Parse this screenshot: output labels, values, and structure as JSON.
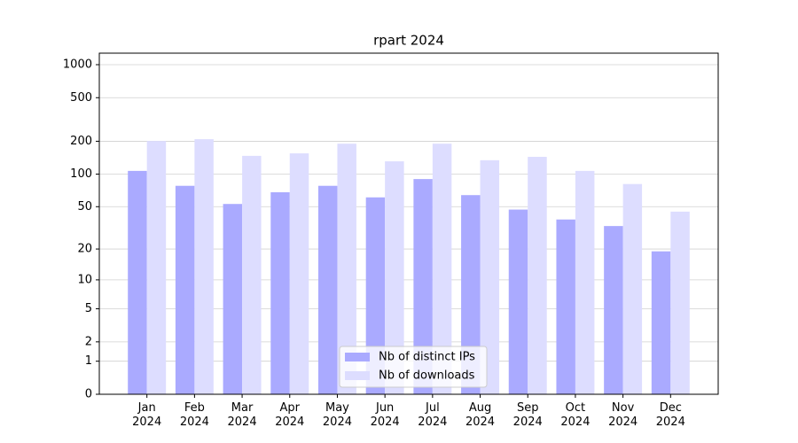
{
  "chart_data": {
    "type": "bar",
    "title": "rpart 2024",
    "categories": [
      "Jan\n2024",
      "Feb\n2024",
      "Mar\n2024",
      "Apr\n2024",
      "May\n2024",
      "Jun\n2024",
      "Jul\n2024",
      "Aug\n2024",
      "Sep\n2024",
      "Oct\n2024",
      "Nov\n2024",
      "Dec\n2024"
    ],
    "series": [
      {
        "name": "Nb of distinct IPs",
        "color": "#aaaaff",
        "values": [
          107,
          78,
          53,
          68,
          78,
          61,
          90,
          64,
          47,
          38,
          33,
          19
        ]
      },
      {
        "name": "Nb of downloads",
        "color": "#ddddff",
        "values": [
          201,
          209,
          147,
          155,
          190,
          131,
          190,
          134,
          144,
          107,
          81,
          45
        ]
      }
    ],
    "yscale": "log1p",
    "ylim": [
      0,
      1273
    ],
    "yticks": [
      0,
      1,
      2,
      5,
      10,
      20,
      50,
      100,
      200,
      500,
      1000
    ],
    "grid": true,
    "legend": "lower center"
  }
}
